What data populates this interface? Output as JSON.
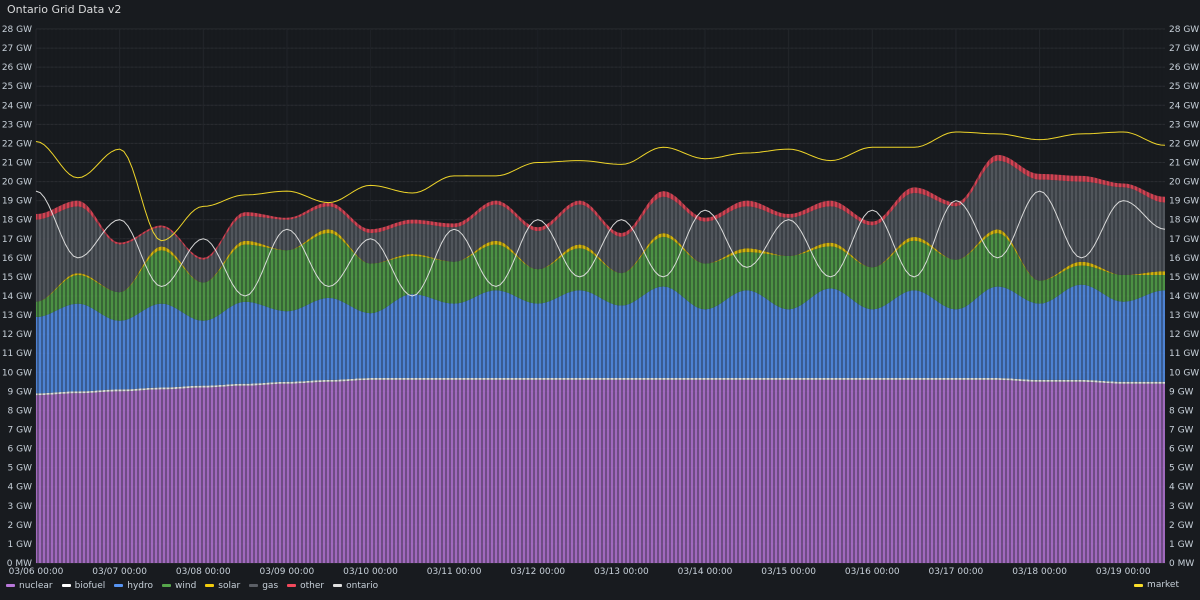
{
  "panel": {
    "title": "Ontario Grid Data v2"
  },
  "chart_data": {
    "type": "area",
    "stacked": true,
    "x_ticks": [
      "03/06 00:00",
      "03/07 00:00",
      "03/08 00:00",
      "03/09 00:00",
      "03/10 00:00",
      "03/11 00:00",
      "03/12 00:00",
      "03/13 00:00",
      "03/14 00:00",
      "03/15 00:00",
      "03/16 00:00",
      "03/17 00:00",
      "03/18 00:00",
      "03/19 00:00"
    ],
    "y_ticks": [
      "0 MW",
      "1 GW",
      "2 GW",
      "3 GW",
      "4 GW",
      "5 GW",
      "6 GW",
      "7 GW",
      "8 GW",
      "9 GW",
      "10 GW",
      "11 GW",
      "12 GW",
      "13 GW",
      "14 GW",
      "15 GW",
      "16 GW",
      "17 GW",
      "18 GW",
      "19 GW",
      "20 GW",
      "21 GW",
      "22 GW",
      "23 GW",
      "24 GW",
      "25 GW",
      "26 GW",
      "27 GW",
      "28 GW"
    ],
    "ylim": [
      0,
      28
    ],
    "y_unit": "GW",
    "x": [
      "03/06 00:00",
      "03/06 12:00",
      "03/07 00:00",
      "03/07 12:00",
      "03/08 00:00",
      "03/08 12:00",
      "03/09 00:00",
      "03/09 12:00",
      "03/10 00:00",
      "03/10 12:00",
      "03/11 00:00",
      "03/11 12:00",
      "03/12 00:00",
      "03/12 12:00",
      "03/13 00:00",
      "03/13 12:00",
      "03/14 00:00",
      "03/14 12:00",
      "03/15 00:00",
      "03/15 12:00",
      "03/16 00:00",
      "03/16 12:00",
      "03/17 00:00",
      "03/17 12:00",
      "03/18 00:00",
      "03/18 12:00",
      "03/19 00:00",
      "03/19 12:00"
    ],
    "series": [
      {
        "name": "nuclear",
        "color": "#b877d9",
        "values": [
          8.8,
          8.9,
          9.0,
          9.1,
          9.2,
          9.3,
          9.4,
          9.5,
          9.6,
          9.6,
          9.6,
          9.6,
          9.6,
          9.6,
          9.6,
          9.6,
          9.6,
          9.6,
          9.6,
          9.6,
          9.6,
          9.6,
          9.6,
          9.6,
          9.5,
          9.5,
          9.4,
          9.4
        ]
      },
      {
        "name": "biofuel",
        "color": "#ffffff",
        "values": [
          0.1,
          0.1,
          0.1,
          0.1,
          0.1,
          0.1,
          0.1,
          0.1,
          0.1,
          0.1,
          0.1,
          0.1,
          0.1,
          0.1,
          0.1,
          0.1,
          0.1,
          0.1,
          0.1,
          0.1,
          0.1,
          0.1,
          0.1,
          0.1,
          0.1,
          0.1,
          0.1,
          0.1
        ]
      },
      {
        "name": "hydro",
        "color": "#5794f2",
        "values": [
          4.0,
          4.6,
          3.6,
          4.4,
          3.4,
          4.3,
          3.7,
          4.3,
          3.4,
          4.4,
          3.9,
          4.6,
          3.9,
          4.6,
          3.8,
          4.8,
          3.6,
          4.6,
          3.6,
          4.7,
          3.6,
          4.6,
          3.6,
          4.8,
          4.0,
          5.0,
          4.2,
          4.8
        ]
      },
      {
        "name": "wind",
        "color": "#56a64b",
        "values": [
          0.8,
          1.5,
          1.5,
          2.8,
          2.0,
          3.0,
          3.2,
          3.4,
          2.6,
          2.0,
          2.2,
          2.4,
          1.8,
          2.2,
          1.7,
          2.6,
          2.4,
          2.0,
          2.8,
          2.2,
          2.2,
          2.6,
          2.6,
          2.8,
          1.2,
          1.0,
          1.4,
          0.8
        ]
      },
      {
        "name": "solar",
        "color": "#f2cc0c",
        "values": [
          0.0,
          0.1,
          0.0,
          0.2,
          0.0,
          0.2,
          0.0,
          0.2,
          0.0,
          0.1,
          0.0,
          0.2,
          0.0,
          0.2,
          0.0,
          0.2,
          0.0,
          0.2,
          0.0,
          0.2,
          0.0,
          0.2,
          0.0,
          0.2,
          0.0,
          0.2,
          0.0,
          0.2
        ]
      },
      {
        "name": "gas",
        "color": "#5b5f66",
        "values": [
          4.3,
          3.5,
          2.5,
          1.0,
          1.2,
          1.3,
          1.6,
          1.2,
          1.6,
          1.6,
          1.8,
          1.9,
          2.0,
          2.1,
          1.9,
          1.9,
          2.2,
          2.2,
          2.0,
          1.9,
          2.2,
          2.3,
          2.8,
          3.6,
          5.3,
          4.2,
          4.6,
          3.6
        ]
      },
      {
        "name": "other",
        "color": "#f2495c",
        "values": [
          0.3,
          0.3,
          0.1,
          0.1,
          0.1,
          0.2,
          0.1,
          0.2,
          0.2,
          0.2,
          0.2,
          0.2,
          0.2,
          0.2,
          0.2,
          0.3,
          0.2,
          0.3,
          0.2,
          0.3,
          0.2,
          0.3,
          0.2,
          0.3,
          0.3,
          0.3,
          0.2,
          0.3
        ]
      }
    ],
    "lines": [
      {
        "name": "ontario",
        "color": "#e0e0e0",
        "values": [
          19.5,
          16.0,
          18.0,
          14.5,
          17.0,
          14.0,
          17.5,
          14.5,
          17.0,
          14.0,
          17.5,
          14.5,
          18.0,
          15.0,
          18.0,
          15.0,
          18.5,
          15.5,
          18.0,
          15.0,
          18.5,
          15.0,
          19.0,
          16.0,
          19.5,
          16.0,
          19.0,
          17.5
        ]
      },
      {
        "name": "market",
        "color": "#fade2a",
        "values": [
          22.1,
          20.2,
          21.7,
          16.9,
          18.7,
          19.3,
          19.5,
          18.9,
          19.8,
          19.4,
          20.3,
          20.3,
          21.0,
          21.1,
          20.9,
          21.8,
          21.2,
          21.5,
          21.7,
          21.1,
          21.8,
          21.8,
          22.6,
          22.5,
          22.2,
          22.5,
          22.6,
          21.9
        ]
      }
    ],
    "legend": [
      "nuclear",
      "biofuel",
      "hydro",
      "wind",
      "solar",
      "gas",
      "other",
      "ontario"
    ],
    "legend_right": "market",
    "grid": true,
    "legend_position": "bottom"
  }
}
